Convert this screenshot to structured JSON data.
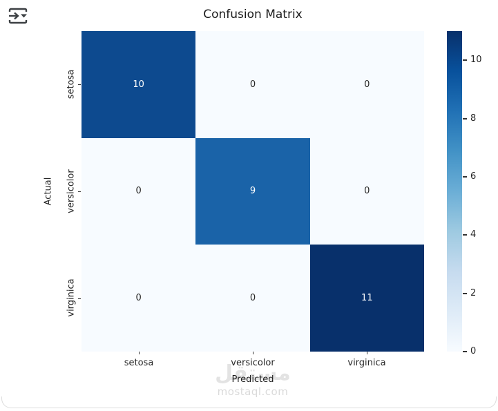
{
  "toolbar": {
    "icon": "cell-output-export-icon"
  },
  "chart_data": {
    "type": "heatmap",
    "title": "Confusion Matrix",
    "xlabel": "Predicted",
    "ylabel": "Actual",
    "categories": [
      "setosa",
      "versicolor",
      "virginica"
    ],
    "matrix": [
      [
        10,
        0,
        0
      ],
      [
        0,
        9,
        0
      ],
      [
        0,
        0,
        11
      ]
    ],
    "colormap": "Blues",
    "vmin": 0,
    "vmax": 11,
    "colorbar_ticks": [
      0,
      2,
      4,
      6,
      8,
      10
    ],
    "legend_position": "right-colorbar",
    "grid": false,
    "cell_colors": [
      [
        "#0d4a8f",
        "#f7fbff",
        "#f7fbff"
      ],
      [
        "#f7fbff",
        "#1a63a8",
        "#f7fbff"
      ],
      [
        "#f7fbff",
        "#f7fbff",
        "#08306b"
      ]
    ],
    "cell_text_colors": [
      [
        "#ffffff",
        "#262626",
        "#262626"
      ],
      [
        "#262626",
        "#ffffff",
        "#262626"
      ],
      [
        "#262626",
        "#262626",
        "#ffffff"
      ]
    ]
  },
  "watermark": {
    "logo": "مستقل",
    "site": "mostaql.com"
  },
  "colors": {
    "blues_scale": [
      "#f7fbff",
      "#deebf7",
      "#c6dbef",
      "#9ecae1",
      "#6baed6",
      "#4292c6",
      "#2171b5",
      "#08519c",
      "#08306b"
    ],
    "text": "#262626",
    "watermark": "#dadada",
    "card_border": "#dcdcdc",
    "icon": "#3c4043"
  }
}
